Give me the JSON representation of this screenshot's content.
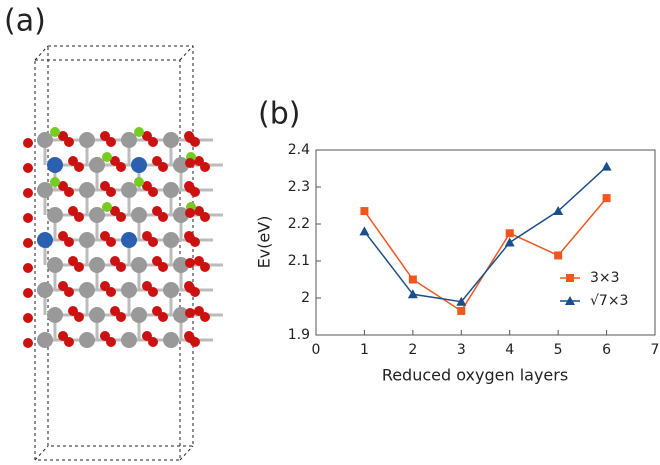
{
  "panel_labels": [
    "(a)",
    "(b)"
  ],
  "chart_data": {
    "type": "line",
    "xlabel": "Reduced oxygen layers",
    "ylabel": "Ev(eV)",
    "xlim": [
      0,
      7
    ],
    "ylim": [
      1.9,
      2.4
    ],
    "xticks": [
      0,
      1,
      2,
      3,
      4,
      5,
      6,
      7
    ],
    "yticks": [
      1.9,
      2,
      2.1,
      2.2,
      2.3,
      2.4
    ],
    "x": [
      1,
      2,
      3,
      4,
      5,
      6
    ],
    "series": [
      {
        "name": "3×3",
        "color": "#f0561e",
        "marker": "square",
        "values": [
          2.235,
          2.05,
          1.965,
          2.175,
          2.115,
          2.27
        ]
      },
      {
        "name": "√7×3",
        "color": "#1a4f8a",
        "marker": "triangle",
        "values": [
          2.18,
          2.01,
          1.99,
          2.15,
          2.235,
          2.355
        ]
      }
    ],
    "grid": false,
    "legend": "right"
  }
}
